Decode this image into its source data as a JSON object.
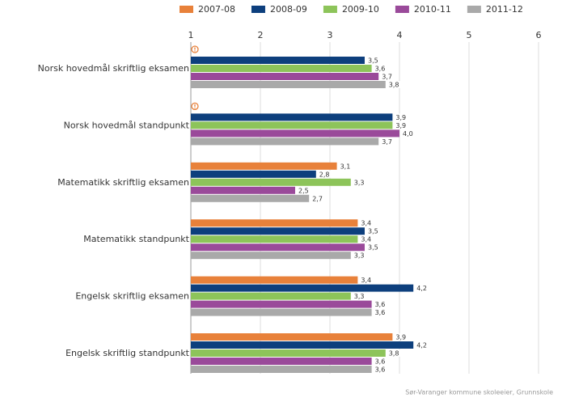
{
  "chart_data": {
    "type": "hbar",
    "categories": [
      "Norsk hovedmål skriftlig eksamen",
      "Norsk hovedmål standpunkt",
      "Matematikk skriftlig eksamen",
      "Matematikk standpunkt",
      "Engelsk skriftlig eksamen",
      "Engelsk skriftlig standpunkt"
    ],
    "series": [
      {
        "name": "2007-08",
        "color": "#e8813a",
        "values": [
          null,
          null,
          3.1,
          3.4,
          3.4,
          3.9
        ],
        "value_labels": [
          null,
          null,
          "3,1",
          "3,4",
          "3,4",
          "3,9"
        ]
      },
      {
        "name": "2008-09",
        "color": "#0d3f7d",
        "values": [
          3.5,
          3.9,
          2.8,
          3.5,
          4.2,
          4.2
        ],
        "value_labels": [
          "3,5",
          "3,9",
          "2,8",
          "3,5",
          "4,2",
          "4,2"
        ]
      },
      {
        "name": "2009-10",
        "color": "#8dc45a",
        "values": [
          3.6,
          3.9,
          3.3,
          3.4,
          3.3,
          3.8
        ],
        "value_labels": [
          "3,6",
          "3,9",
          "3,3",
          "3,4",
          "3,3",
          "3,8"
        ]
      },
      {
        "name": "2010-11",
        "color": "#9a4a9a",
        "values": [
          3.7,
          4.0,
          2.5,
          3.5,
          3.6,
          3.6
        ],
        "value_labels": [
          "3,7",
          "4,0",
          "2,5",
          "3,5",
          "3,6",
          "3,6"
        ]
      },
      {
        "name": "2011-12",
        "color": "#a9a9a9",
        "values": [
          3.8,
          3.7,
          2.7,
          3.3,
          3.6,
          3.6
        ],
        "value_labels": [
          "3,8",
          "3,7",
          "2,7",
          "3,3",
          "3,6",
          "3,6"
        ]
      }
    ],
    "xlim": [
      1,
      6
    ],
    "xticks": [
      1,
      2,
      3,
      4,
      5,
      6
    ],
    "grid": true,
    "source": "Sør-Varanger kommune skoleeier, Grunnskole"
  }
}
